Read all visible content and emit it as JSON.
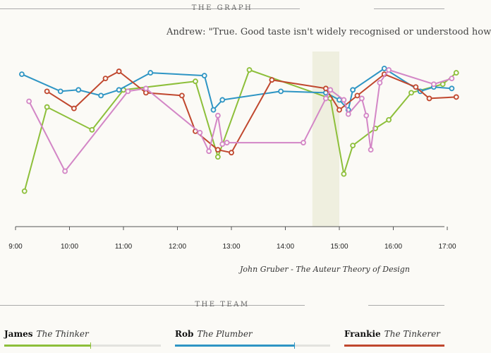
{
  "headers": {
    "graph": "THE GRAPH",
    "team": "THE TEAM"
  },
  "quote": "Andrew: \"True. Good taste isn't widely recognised or understood how",
  "attribution": "John Gruber - The Auteur Theory of Design",
  "team": [
    {
      "name": "James",
      "role": "The Thinker",
      "color": "#8dbf3a",
      "progress": 0.55
    },
    {
      "name": "Rob",
      "role": "The Plumber",
      "color": "#2e95c4",
      "progress": 0.77
    },
    {
      "name": "Frankie",
      "role": "The Tinkerer",
      "color": "#c0472e",
      "progress": 1.0
    }
  ],
  "chart_data": {
    "type": "line",
    "x_unit": "time of day",
    "x_ticks": [
      "9:00",
      "10:00",
      "11:00",
      "12:00",
      "13:00",
      "14:00",
      "15:00",
      "16:00",
      "17:00"
    ],
    "xlim": [
      "9:00",
      "17:10"
    ],
    "ylim": [
      0,
      100
    ],
    "highlight": {
      "from": "14:30",
      "to": "15:00"
    },
    "y_axis_labels": false,
    "series": [
      {
        "id": "james",
        "color": "#8dbf3a",
        "points": [
          [
            "9:10",
            13
          ],
          [
            "9:35",
            72
          ],
          [
            "10:25",
            56
          ],
          [
            "11:00",
            84
          ],
          [
            "12:20",
            90
          ],
          [
            "12:45",
            37
          ],
          [
            "13:20",
            98
          ],
          [
            "14:50",
            78
          ],
          [
            "15:05",
            25
          ],
          [
            "15:15",
            45
          ],
          [
            "15:40",
            57
          ],
          [
            "15:55",
            63
          ],
          [
            "16:20",
            82
          ],
          [
            "16:55",
            88
          ],
          [
            "17:10",
            96
          ]
        ]
      },
      {
        "id": "rob",
        "color": "#2e95c4",
        "points": [
          [
            "9:07",
            95
          ],
          [
            "9:50",
            83
          ],
          [
            "10:10",
            84
          ],
          [
            "10:35",
            80
          ],
          [
            "10:55",
            84
          ],
          [
            "11:30",
            96
          ],
          [
            "12:30",
            94
          ],
          [
            "12:40",
            70
          ],
          [
            "12:50",
            77
          ],
          [
            "13:55",
            83
          ],
          [
            "14:45",
            82
          ],
          [
            "15:00",
            77
          ],
          [
            "15:10",
            70
          ],
          [
            "15:15",
            84
          ],
          [
            "15:50",
            99
          ],
          [
            "16:30",
            83
          ],
          [
            "16:45",
            86
          ],
          [
            "17:05",
            85
          ]
        ]
      },
      {
        "id": "frankie",
        "color": "#c0472e",
        "points": [
          [
            "9:35",
            83
          ],
          [
            "10:05",
            71
          ],
          [
            "10:40",
            92
          ],
          [
            "10:55",
            97
          ],
          [
            "11:25",
            82
          ],
          [
            "12:05",
            80
          ],
          [
            "12:20",
            55
          ],
          [
            "12:45",
            42
          ],
          [
            "13:00",
            40
          ],
          [
            "13:45",
            91
          ],
          [
            "14:45",
            85
          ],
          [
            "15:00",
            70
          ],
          [
            "15:20",
            80
          ],
          [
            "15:50",
            95
          ],
          [
            "16:25",
            86
          ],
          [
            "16:40",
            78
          ],
          [
            "17:10",
            79
          ]
        ]
      },
      {
        "id": "pink",
        "color": "#d386c6",
        "points": [
          [
            "9:15",
            76
          ],
          [
            "9:55",
            27
          ],
          [
            "11:05",
            83
          ],
          [
            "11:25",
            85
          ],
          [
            "12:25",
            54
          ],
          [
            "12:35",
            41
          ],
          [
            "12:45",
            66
          ],
          [
            "12:50",
            46
          ],
          [
            "12:55",
            47
          ],
          [
            "14:20",
            47
          ],
          [
            "14:45",
            78
          ],
          [
            "14:50",
            84
          ],
          [
            "15:05",
            77
          ],
          [
            "15:10",
            67
          ],
          [
            "15:25",
            78
          ],
          [
            "15:30",
            66
          ],
          [
            "15:35",
            42
          ],
          [
            "15:45",
            89
          ],
          [
            "15:55",
            98
          ],
          [
            "16:45",
            88
          ],
          [
            "17:05",
            92
          ]
        ]
      }
    ]
  }
}
